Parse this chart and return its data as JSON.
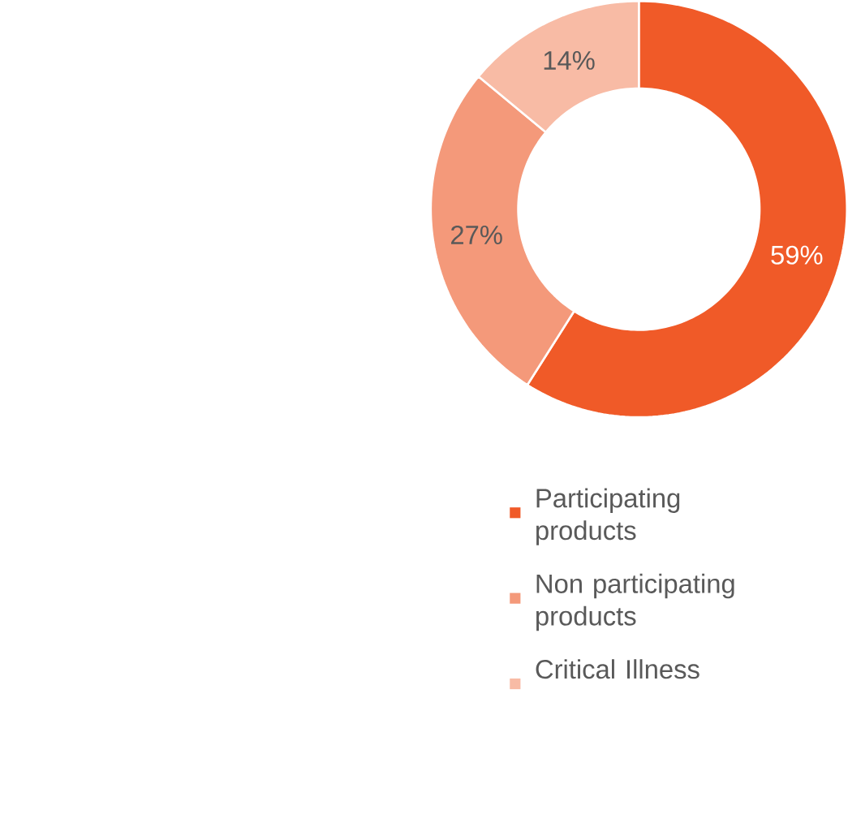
{
  "chart_data": {
    "type": "donut",
    "categories": [
      "Participating products",
      "Non participating products",
      "Critical Illness"
    ],
    "values": [
      59,
      27,
      14
    ],
    "colors": [
      "#f05a28",
      "#f4997a",
      "#f8bba5"
    ],
    "value_labels": [
      "59%",
      "27%",
      "14%"
    ],
    "legend": "right"
  }
}
